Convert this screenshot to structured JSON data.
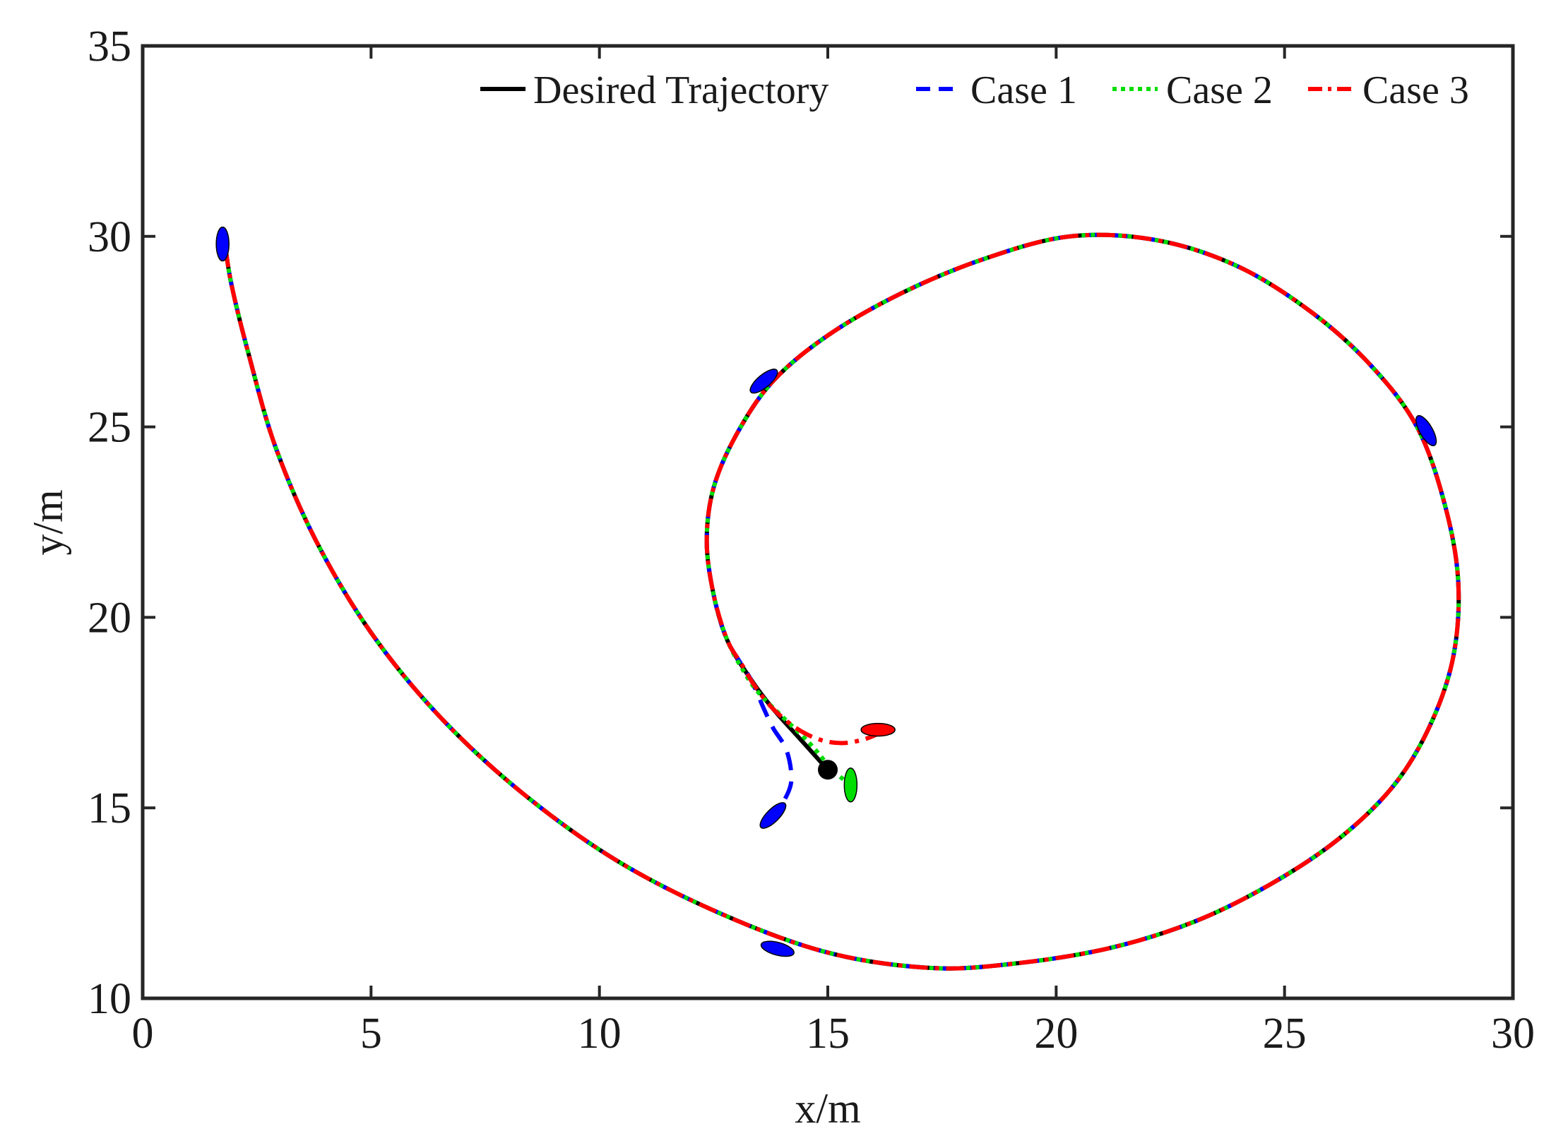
{
  "chart_data": {
    "type": "line",
    "title": "",
    "xlabel": "x/m",
    "ylabel": "y/m",
    "xlim": [
      0,
      30
    ],
    "ylim": [
      10,
      35
    ],
    "xticks": [
      0,
      5,
      10,
      15,
      20,
      25,
      30
    ],
    "yticks": [
      10,
      15,
      20,
      25,
      30,
      35
    ],
    "grid": false,
    "legend_position": "top-right",
    "legend": [
      "Desired Trajectory",
      "Case 1",
      "Case 2",
      "Case 3"
    ],
    "series": [
      {
        "name": "Desired Trajectory",
        "color": "#000000",
        "style": "solid",
        "x": [
          15.0,
          14.4,
          13.8,
          13.3,
          12.8,
          12.5,
          12.35,
          12.5,
          13.0,
          13.8,
          15.0,
          16.6,
          18.4,
          20.3,
          22.2,
          24.0,
          25.6,
          26.9,
          27.9,
          28.5,
          28.8,
          28.7,
          28.2,
          27.4,
          26.2,
          24.7,
          23.0,
          21.1,
          19.0,
          17.2,
          15.0,
          12.7,
          10.4,
          8.3,
          6.5,
          5.0,
          3.8,
          2.9,
          2.3,
          1.95,
          1.8
        ],
        "y": [
          16.0,
          16.8,
          17.6,
          18.4,
          19.4,
          20.6,
          22.0,
          23.4,
          24.8,
          26.2,
          27.4,
          28.5,
          29.4,
          30.0,
          29.9,
          29.2,
          28.0,
          26.6,
          25.0,
          23.0,
          21.0,
          19.0,
          17.2,
          15.6,
          14.2,
          13.0,
          12.0,
          11.3,
          10.9,
          10.8,
          11.2,
          12.2,
          13.6,
          15.4,
          17.4,
          19.6,
          22.0,
          24.5,
          27.0,
          28.7,
          29.8
        ]
      },
      {
        "name": "Case 1",
        "color": "#0000ff",
        "style": "dashed",
        "x": [
          13.7,
          14.0,
          14.2,
          14.1,
          13.8,
          13.6,
          13.3,
          12.8,
          12.5,
          12.35,
          12.5,
          13.0,
          13.8,
          15.0,
          16.6,
          18.4,
          20.3,
          22.2,
          24.0,
          25.6,
          26.9,
          27.9,
          28.5,
          28.8,
          28.7,
          28.2,
          27.4,
          26.2,
          24.7,
          23.0,
          21.1,
          19.0,
          17.2,
          15.0,
          12.7,
          10.4,
          8.3,
          6.5,
          5.0,
          3.8,
          2.9,
          2.3,
          1.95,
          1.8
        ],
        "y": [
          14.6,
          15.1,
          15.7,
          16.5,
          17.1,
          17.6,
          18.4,
          19.4,
          20.6,
          22.0,
          23.4,
          24.8,
          26.2,
          27.4,
          28.5,
          29.4,
          30.0,
          29.9,
          29.2,
          28.0,
          26.6,
          25.0,
          23.0,
          21.0,
          19.0,
          17.2,
          15.6,
          14.2,
          13.0,
          12.0,
          11.3,
          10.9,
          10.8,
          11.2,
          12.2,
          13.6,
          15.4,
          17.4,
          19.6,
          22.0,
          24.5,
          27.0,
          28.7,
          29.8
        ]
      },
      {
        "name": "Case 2",
        "color": "#00dd00",
        "style": "dotted",
        "x": [
          15.5,
          15.1,
          14.6,
          14.0,
          13.5,
          13.2,
          12.8,
          12.5,
          12.35,
          12.5,
          13.0,
          13.8,
          15.0,
          16.6,
          18.4,
          20.3,
          22.2,
          24.0,
          25.6,
          26.9,
          27.9,
          28.5,
          28.8,
          28.7,
          28.2,
          27.4,
          26.2,
          24.7,
          23.0,
          21.1,
          19.0,
          17.2,
          15.0,
          12.7,
          10.4,
          8.3,
          6.5,
          5.0,
          3.8,
          2.9,
          2.3,
          1.95,
          1.8
        ],
        "y": [
          15.6,
          16.0,
          16.7,
          17.4,
          18.0,
          18.5,
          19.4,
          20.6,
          22.0,
          23.4,
          24.8,
          26.2,
          27.4,
          28.5,
          29.4,
          30.0,
          29.9,
          29.2,
          28.0,
          26.6,
          25.0,
          23.0,
          21.0,
          19.0,
          17.2,
          15.6,
          14.2,
          13.0,
          12.0,
          11.3,
          10.9,
          10.8,
          11.2,
          12.2,
          13.6,
          15.4,
          17.4,
          19.6,
          22.0,
          24.5,
          27.0,
          28.7,
          29.8
        ]
      },
      {
        "name": "Case 3",
        "color": "#ff0000",
        "style": "dashdot",
        "x": [
          16.2,
          15.8,
          15.3,
          14.8,
          14.3,
          13.8,
          13.4,
          13.1,
          12.8,
          12.5,
          12.35,
          12.5,
          13.0,
          13.8,
          15.0,
          16.6,
          18.4,
          20.3,
          22.2,
          24.0,
          25.6,
          26.9,
          27.9,
          28.5,
          28.8,
          28.7,
          28.2,
          27.4,
          26.2,
          24.7,
          23.0,
          21.1,
          19.0,
          17.2,
          15.0,
          12.7,
          10.4,
          8.3,
          6.5,
          5.0,
          3.8,
          2.9,
          2.3,
          1.95,
          1.8
        ],
        "y": [
          17.0,
          16.8,
          16.7,
          16.8,
          17.1,
          17.6,
          18.2,
          18.8,
          19.4,
          20.6,
          22.0,
          23.4,
          24.8,
          26.2,
          27.4,
          28.5,
          29.4,
          30.0,
          29.9,
          29.2,
          28.0,
          26.6,
          25.0,
          23.0,
          21.0,
          19.0,
          17.2,
          15.6,
          14.2,
          13.0,
          12.0,
          11.3,
          10.9,
          10.8,
          11.2,
          12.2,
          13.6,
          15.4,
          17.4,
          19.6,
          22.0,
          24.5,
          27.0,
          28.7,
          29.8
        ]
      }
    ],
    "markers": [
      {
        "name": "start-point",
        "x": 15.0,
        "y": 16.0,
        "color": "#000000",
        "shape": "circle"
      }
    ],
    "vessels": [
      {
        "name": "vessel-case1-start",
        "x": 13.8,
        "y": 14.8,
        "heading": 45,
        "color": "#0000ff"
      },
      {
        "name": "vessel-case2-start",
        "x": 15.5,
        "y": 15.6,
        "heading": 90,
        "color": "#00dd00"
      },
      {
        "name": "vessel-case3-start",
        "x": 16.1,
        "y": 17.05,
        "heading": 0,
        "color": "#ff0000"
      },
      {
        "name": "vessel-spiral-1",
        "x": 13.6,
        "y": 26.2,
        "heading": 40,
        "color": "#0000ff"
      },
      {
        "name": "vessel-spiral-2",
        "x": 28.1,
        "y": 24.9,
        "heading": -60,
        "color": "#0000ff"
      },
      {
        "name": "vessel-spiral-3",
        "x": 13.9,
        "y": 11.3,
        "heading": -15,
        "color": "#0000ff"
      },
      {
        "name": "vessel-spiral-4",
        "x": 1.75,
        "y": 29.8,
        "heading": 90,
        "color": "#0000ff"
      }
    ]
  }
}
